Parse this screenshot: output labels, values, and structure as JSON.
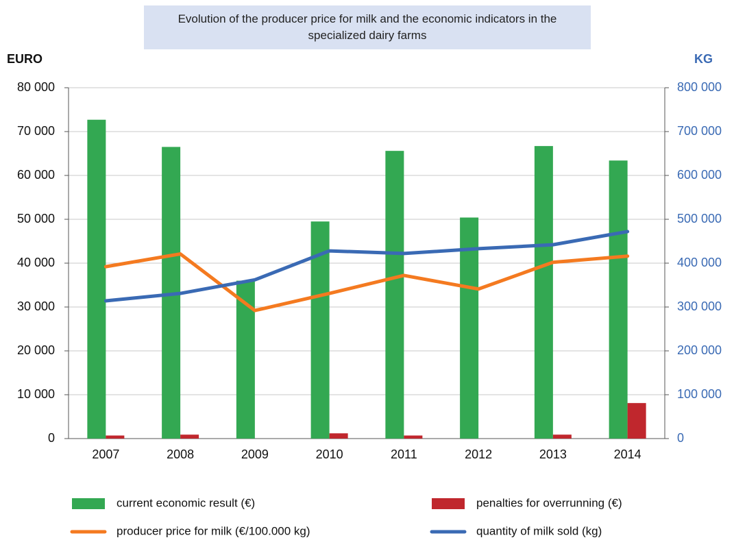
{
  "chart_data": {
    "type": "bar",
    "title": "Evolution of the producer price for milk and the economic indicators in the specialized dairy farms",
    "y_label": "EURO",
    "y2_label": "KG",
    "categories": [
      "2007",
      "2008",
      "2009",
      "2010",
      "2011",
      "2012",
      "2013",
      "2014"
    ],
    "series": [
      {
        "name": "current economic result (€)",
        "type": "bar",
        "color": "#33a852",
        "values": [
          72700,
          66500,
          36000,
          49500,
          65600,
          50400,
          66700,
          63400
        ]
      },
      {
        "name": "penalties for overrunning (€)",
        "type": "bar",
        "color": "#c0272d",
        "values": [
          700,
          900,
          0,
          1200,
          700,
          0,
          900,
          8100
        ]
      },
      {
        "name": "producer price for milk (€/100.000 kg)",
        "type": "line",
        "color": "#f47a20",
        "values": [
          39200,
          42100,
          29200,
          33100,
          37200,
          34100,
          40200,
          41600
        ]
      },
      {
        "name": "quantity of milk sold (kg)",
        "type": "line",
        "axis": "y2",
        "color": "#3a6ab4",
        "values": [
          314000,
          331000,
          362000,
          428000,
          422000,
          433000,
          442000,
          472000
        ]
      }
    ],
    "ylim": [
      0,
      80000
    ],
    "yticks": [
      0,
      {
        "value": 10000,
        "label": "10 000"
      },
      {
        "value": 20000,
        "label": "20 000"
      },
      {
        "value": 30000,
        "label": "30 000"
      },
      {
        "value": 40000,
        "label": "40 000"
      },
      {
        "value": 50000,
        "label": "50 000"
      },
      {
        "value": 60000,
        "label": "60 000"
      },
      {
        "value": 70000,
        "label": "70 000"
      },
      {
        "value": 80000,
        "label": "80 000"
      }
    ],
    "y2lim": [
      0,
      800000
    ],
    "y2ticks": [
      0,
      {
        "value": 100000,
        "label": "100 000"
      },
      {
        "value": 200000,
        "label": "200 000"
      },
      {
        "value": 300000,
        "label": "300 000"
      },
      {
        "value": 400000,
        "label": "400 000"
      },
      {
        "value": 500000,
        "label": "500 000"
      },
      {
        "value": 600000,
        "label": "600 000"
      },
      {
        "value": 700000,
        "label": "700 000"
      },
      {
        "value": 800000,
        "label": "800 000"
      }
    ],
    "y2_color": "#3a6ab4",
    "grid": true
  }
}
